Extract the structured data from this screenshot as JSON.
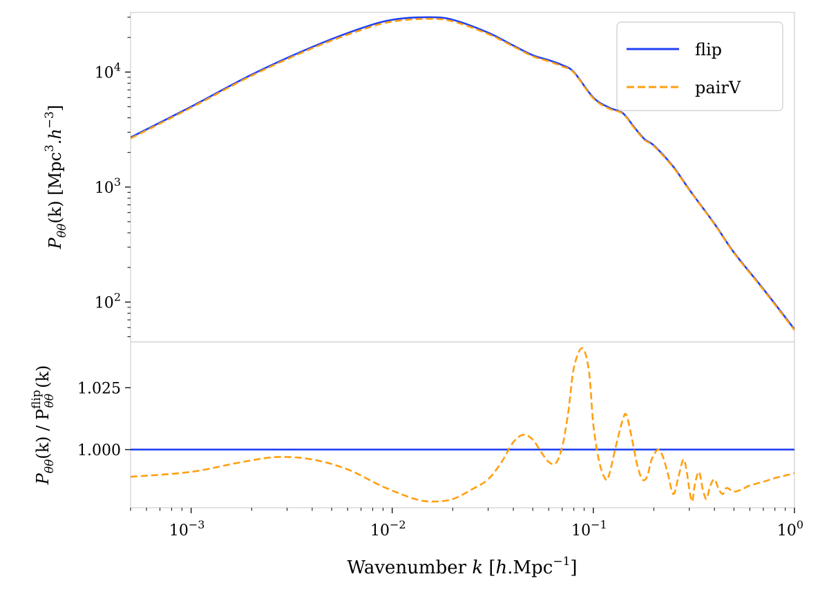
{
  "chart_data": [
    {
      "type": "line",
      "panel": "top",
      "xscale": "log",
      "yscale": "log",
      "xlim": [
        0.0005,
        1
      ],
      "ylim": [
        45,
        33000
      ],
      "ylabel": {
        "prefix": "P",
        "sub": "θθ",
        "mid": "(k) [Mpc",
        "sup1": "3",
        "mid2": ".h",
        "sup2": "−3",
        "suffix": "]"
      },
      "yticks": [
        {
          "value": 100,
          "base": "10",
          "exp": "2"
        },
        {
          "value": 1000,
          "base": "10",
          "exp": "3"
        },
        {
          "value": 10000,
          "base": "10",
          "exp": "4"
        }
      ],
      "legend": {
        "position": "top-right",
        "entries": [
          {
            "label": "flip",
            "style": "solid",
            "color": "#1f3ff5"
          },
          {
            "label": "pairV",
            "style": "dashed",
            "color": "#ff9f0f"
          }
        ]
      },
      "series": [
        {
          "name": "flip",
          "color": "#1f3ff5",
          "style": "solid",
          "x": [
            0.0005,
            0.001,
            0.002,
            0.004,
            0.007,
            0.01,
            0.015,
            0.02,
            0.03,
            0.04,
            0.05,
            0.06,
            0.07,
            0.08,
            0.1,
            0.12,
            0.14,
            0.16,
            0.18,
            0.2,
            0.25,
            0.3,
            0.4,
            0.5,
            0.7,
            1.0
          ],
          "y": [
            2700,
            5000,
            9500,
            16500,
            24000,
            28500,
            30000,
            28500,
            22000,
            17000,
            14000,
            12700,
            11500,
            10000,
            6000,
            4900,
            4400,
            3300,
            2600,
            2300,
            1500,
            950,
            480,
            270,
            130,
            58
          ]
        },
        {
          "name": "pairV",
          "color": "#ff9f0f",
          "style": "dashed",
          "x": [
            0.0005,
            0.001,
            0.002,
            0.004,
            0.007,
            0.01,
            0.015,
            0.02,
            0.03,
            0.04,
            0.05,
            0.06,
            0.07,
            0.08,
            0.1,
            0.12,
            0.14,
            0.16,
            0.18,
            0.2,
            0.25,
            0.3,
            0.4,
            0.5,
            0.7,
            1.0
          ],
          "y": [
            2650,
            4900,
            9300,
            16100,
            23200,
            27500,
            29000,
            27600,
            21400,
            16700,
            13700,
            12400,
            11200,
            9900,
            5900,
            4800,
            4350,
            3250,
            2560,
            2270,
            1480,
            940,
            475,
            267,
            128,
            57
          ]
        }
      ]
    },
    {
      "type": "line",
      "panel": "bottom",
      "xscale": "log",
      "yscale": "linear",
      "xlim": [
        0.0005,
        1
      ],
      "ylim": [
        0.9765,
        1.0435
      ],
      "xlabel": {
        "pre": "Wavenumber ",
        "k": "k",
        "lb": " [",
        "h": "h",
        "mid": ".Mpc",
        "sup": "−1",
        "rb": "]"
      },
      "ylabel": {
        "prefix": "P",
        "sub": "θθ",
        "mid": "(k) / P",
        "sup": "flip",
        "sub2": "θθ",
        "suffix": "(k)"
      },
      "xticks": [
        {
          "value": 0.001,
          "base": "10",
          "exp": "−3"
        },
        {
          "value": 0.01,
          "base": "10",
          "exp": "−2"
        },
        {
          "value": 0.1,
          "base": "10",
          "exp": "−1"
        },
        {
          "value": 1,
          "base": "10",
          "exp": "0"
        }
      ],
      "yticks": [
        {
          "value": 1.0,
          "label": "1.000"
        },
        {
          "value": 1.025,
          "label": "1.025"
        }
      ],
      "series": [
        {
          "name": "flip",
          "color": "#1f3ff5",
          "style": "solid",
          "x": [
            0.0005,
            1.0
          ],
          "y": [
            1.0,
            1.0
          ]
        },
        {
          "name": "pairV",
          "color": "#ff9f0f",
          "style": "dashed",
          "x": [
            0.0005,
            0.001,
            0.0018,
            0.0027,
            0.004,
            0.006,
            0.009,
            0.013,
            0.016,
            0.02,
            0.025,
            0.03,
            0.035,
            0.04,
            0.045,
            0.05,
            0.055,
            0.06,
            0.065,
            0.07,
            0.075,
            0.08,
            0.088,
            0.095,
            0.1,
            0.107,
            0.115,
            0.12,
            0.13,
            0.14,
            0.146,
            0.155,
            0.165,
            0.175,
            0.185,
            0.195,
            0.21,
            0.222,
            0.235,
            0.25,
            0.265,
            0.28,
            0.29,
            0.3,
            0.31,
            0.32,
            0.335,
            0.35,
            0.365,
            0.38,
            0.4,
            0.42,
            0.44,
            0.46,
            0.5,
            0.55,
            0.6,
            0.7,
            0.8,
            0.9,
            1.0
          ],
          "y": [
            0.989,
            0.991,
            0.995,
            0.997,
            0.996,
            0.992,
            0.985,
            0.98,
            0.979,
            0.98,
            0.984,
            0.988,
            0.995,
            1.003,
            1.006,
            1.004,
            0.999,
            0.995,
            0.9945,
            1.001,
            1.015,
            1.033,
            1.041,
            1.032,
            1.01,
            0.995,
            0.988,
            0.99,
            1.002,
            1.012,
            1.014,
            1.005,
            0.994,
            0.988,
            0.989,
            0.996,
            1.0,
            0.997,
            0.99,
            0.982,
            0.989,
            0.996,
            0.992,
            0.984,
            0.979,
            0.986,
            0.991,
            0.984,
            0.98,
            0.985,
            0.988,
            0.984,
            0.982,
            0.9845,
            0.983,
            0.984,
            0.9855,
            0.987,
            0.9885,
            0.9895,
            0.9905
          ]
        }
      ]
    }
  ]
}
